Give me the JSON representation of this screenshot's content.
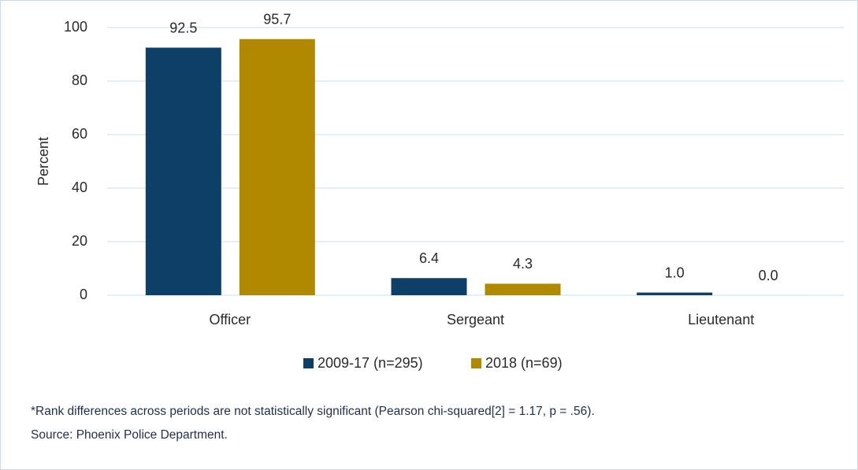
{
  "chart_data": {
    "type": "bar",
    "y_label": "Percent",
    "categories": [
      "Officer",
      "Sergeant",
      "Lieutenant"
    ],
    "series": [
      {
        "name": "2009-17 (n=295)",
        "color": "#0e3f66",
        "values": [
          92.5,
          6.4,
          1.0
        ],
        "value_labels": [
          "92.5",
          "6.4",
          "1.0"
        ]
      },
      {
        "name": "2018 (n=69)",
        "color": "#b08900",
        "values": [
          95.7,
          4.3,
          0.0
        ],
        "value_labels": [
          "95.7",
          "4.3",
          "0.0"
        ]
      }
    ],
    "ylim": [
      0,
      100
    ],
    "yticks": [
      0,
      20,
      40,
      60,
      80,
      100
    ],
    "grid": true,
    "legend": "bottom",
    "note": "*Rank differences across periods are not statistically significant (Pearson chi-squared[2] = 1.17, p = .56).",
    "source": "Source: Phoenix Police Department."
  }
}
